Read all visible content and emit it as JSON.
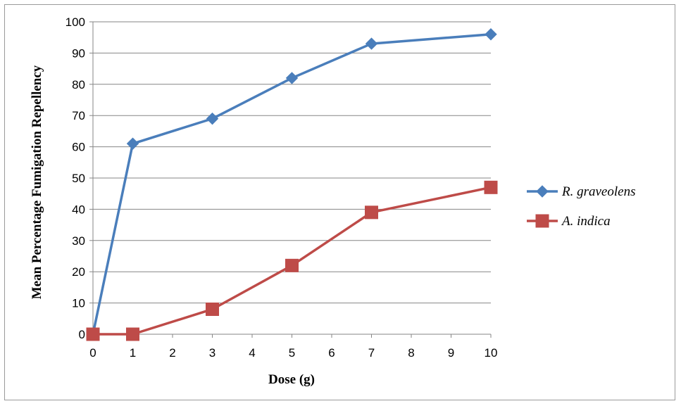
{
  "chart_data": {
    "type": "line",
    "x": [
      0,
      1,
      3,
      5,
      7,
      10
    ],
    "categories": [
      "0",
      "1",
      "2",
      "3",
      "4",
      "5",
      "6",
      "7",
      "8",
      "9",
      "10"
    ],
    "xlim": [
      0,
      10
    ],
    "ylim": [
      0,
      100
    ],
    "y_ticks": [
      0,
      10,
      20,
      30,
      40,
      50,
      60,
      70,
      80,
      90,
      100
    ],
    "x_ticks": [
      0,
      1,
      2,
      3,
      4,
      5,
      6,
      7,
      8,
      9,
      10
    ],
    "xlabel": "Dose (g)",
    "ylabel": "Mean Percentage Fumigation Repellency",
    "grid": "horizontal",
    "legend_position": "right",
    "series": [
      {
        "name": "R. graveolens",
        "values": [
          0,
          61,
          69,
          82,
          93,
          96
        ],
        "color": "#4a7ebb",
        "marker": "diamond"
      },
      {
        "name": "A. indica",
        "values": [
          0,
          0,
          8,
          22,
          39,
          47
        ],
        "color": "#be4b48",
        "marker": "square"
      }
    ]
  }
}
